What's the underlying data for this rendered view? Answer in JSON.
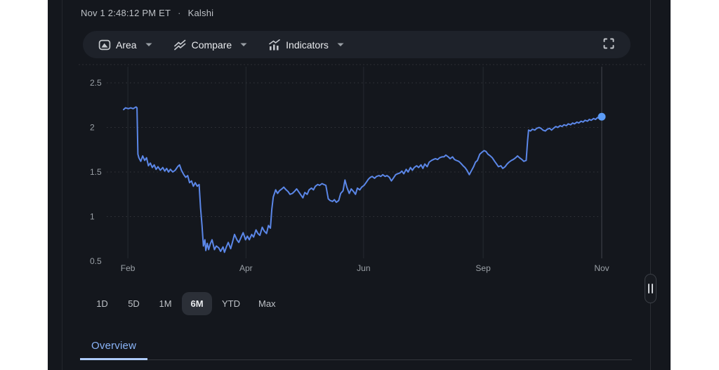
{
  "header": {
    "timestamp": "Nov 1 2:48:12 PM ET",
    "separator": "·",
    "source": "Kalshi"
  },
  "toolbar": {
    "items": [
      {
        "label": "Area",
        "icon": "area-chart-icon"
      },
      {
        "label": "Compare",
        "icon": "compare-icon"
      },
      {
        "label": "Indicators",
        "icon": "indicators-icon"
      }
    ],
    "fullscreen_icon": "fullscreen-icon"
  },
  "range": {
    "buttons": [
      {
        "label": "1D",
        "active": false
      },
      {
        "label": "5D",
        "active": false
      },
      {
        "label": "1M",
        "active": false
      },
      {
        "label": "6M",
        "active": true
      },
      {
        "label": "YTD",
        "active": false
      },
      {
        "label": "Max",
        "active": false
      }
    ]
  },
  "tabs": {
    "items": [
      {
        "label": "Overview",
        "active": true
      }
    ]
  },
  "colors": {
    "panel_bg": "#14171d",
    "surface_bg": "#1e222a",
    "selected_bg": "#2b2f37",
    "line_blue": "#5b87e8",
    "dot_blue": "#5c9bf5",
    "tab_blue": "#8ab4f8",
    "tab_underline": "#aecbfa",
    "axis_text": "#9aa0a6",
    "grid_dotted": "#33363c",
    "grid_vertical": "#262930",
    "grid_vertical_emphasis": "#42464d"
  },
  "chart_data": {
    "type": "line",
    "title": "",
    "xlabel": "",
    "ylabel": "",
    "ylim": [
      0.5,
      2.5
    ],
    "yticks": [
      2.5,
      2,
      1.5,
      1,
      0.5
    ],
    "ytick_gridline": [
      2.5,
      2,
      1.5,
      1
    ],
    "grid": "dotted horizontal, solid vertical month lines",
    "legend": "none",
    "endpoint_marker": true,
    "xticks": [
      {
        "label": "Feb",
        "t": 0.009,
        "emphasis": false
      },
      {
        "label": "Apr",
        "t": 0.256,
        "emphasis": false
      },
      {
        "label": "Jun",
        "t": 0.502,
        "emphasis": false
      },
      {
        "label": "Sep",
        "t": 0.752,
        "emphasis": false
      },
      {
        "label": "Nov",
        "t": 1.0,
        "emphasis": true
      }
    ],
    "series": [
      {
        "name": "Kalshi",
        "color": "#5b87e8",
        "points": [
          [
            0.0,
            2.2
          ],
          [
            0.004,
            2.22
          ],
          [
            0.01,
            2.21
          ],
          [
            0.015,
            2.22
          ],
          [
            0.02,
            2.21
          ],
          [
            0.026,
            2.23
          ],
          [
            0.028,
            2.22
          ],
          [
            0.03,
            1.7
          ],
          [
            0.032,
            1.66
          ],
          [
            0.036,
            1.62
          ],
          [
            0.04,
            1.68
          ],
          [
            0.044,
            1.63
          ],
          [
            0.048,
            1.66
          ],
          [
            0.052,
            1.57
          ],
          [
            0.056,
            1.6
          ],
          [
            0.06,
            1.55
          ],
          [
            0.064,
            1.58
          ],
          [
            0.068,
            1.53
          ],
          [
            0.072,
            1.56
          ],
          [
            0.077,
            1.52
          ],
          [
            0.082,
            1.55
          ],
          [
            0.086,
            1.51
          ],
          [
            0.09,
            1.54
          ],
          [
            0.094,
            1.5
          ],
          [
            0.098,
            1.53
          ],
          [
            0.103,
            1.5
          ],
          [
            0.108,
            1.52
          ],
          [
            0.113,
            1.56
          ],
          [
            0.117,
            1.58
          ],
          [
            0.121,
            1.52
          ],
          [
            0.126,
            1.47
          ],
          [
            0.13,
            1.44
          ],
          [
            0.134,
            1.46
          ],
          [
            0.138,
            1.38
          ],
          [
            0.142,
            1.4
          ],
          [
            0.146,
            1.34
          ],
          [
            0.15,
            1.38
          ],
          [
            0.154,
            1.34
          ],
          [
            0.158,
            1.36
          ],
          [
            0.161,
            1.1
          ],
          [
            0.164,
            0.9
          ],
          [
            0.167,
            0.67
          ],
          [
            0.17,
            0.74
          ],
          [
            0.172,
            0.62
          ],
          [
            0.175,
            0.7
          ],
          [
            0.178,
            0.63
          ],
          [
            0.181,
            0.69
          ],
          [
            0.185,
            0.74
          ],
          [
            0.19,
            0.63
          ],
          [
            0.194,
            0.67
          ],
          [
            0.199,
            0.65
          ],
          [
            0.203,
            0.61
          ],
          [
            0.208,
            0.66
          ],
          [
            0.211,
            0.6
          ],
          [
            0.215,
            0.66
          ],
          [
            0.219,
            0.71
          ],
          [
            0.224,
            0.64
          ],
          [
            0.228,
            0.72
          ],
          [
            0.232,
            0.8
          ],
          [
            0.237,
            0.74
          ],
          [
            0.241,
            0.71
          ],
          [
            0.246,
            0.77
          ],
          [
            0.25,
            0.82
          ],
          [
            0.255,
            0.74
          ],
          [
            0.259,
            0.78
          ],
          [
            0.263,
            0.74
          ],
          [
            0.268,
            0.8
          ],
          [
            0.272,
            0.77
          ],
          [
            0.277,
            0.85
          ],
          [
            0.281,
            0.81
          ],
          [
            0.285,
            0.79
          ],
          [
            0.29,
            0.88
          ],
          [
            0.294,
            0.84
          ],
          [
            0.299,
            0.81
          ],
          [
            0.303,
            0.9
          ],
          [
            0.307,
            0.87
          ],
          [
            0.31,
            1.08
          ],
          [
            0.313,
            1.22
          ],
          [
            0.318,
            1.3
          ],
          [
            0.322,
            1.26
          ],
          [
            0.326,
            1.29
          ],
          [
            0.331,
            1.31
          ],
          [
            0.335,
            1.33
          ],
          [
            0.34,
            1.3
          ],
          [
            0.344,
            1.28
          ],
          [
            0.348,
            1.25
          ],
          [
            0.353,
            1.26
          ],
          [
            0.357,
            1.28
          ],
          [
            0.362,
            1.31
          ],
          [
            0.366,
            1.28
          ],
          [
            0.371,
            1.24
          ],
          [
            0.375,
            1.21
          ],
          [
            0.379,
            1.27
          ],
          [
            0.384,
            1.25
          ],
          [
            0.388,
            1.3
          ],
          [
            0.393,
            1.32
          ],
          [
            0.397,
            1.3
          ],
          [
            0.401,
            1.34
          ],
          [
            0.406,
            1.36
          ],
          [
            0.41,
            1.35
          ],
          [
            0.415,
            1.37
          ],
          [
            0.419,
            1.36
          ],
          [
            0.423,
            1.35
          ],
          [
            0.428,
            1.2
          ],
          [
            0.432,
            1.18
          ],
          [
            0.437,
            1.17
          ],
          [
            0.441,
            1.19
          ],
          [
            0.445,
            1.16
          ],
          [
            0.45,
            1.18
          ],
          [
            0.454,
            1.26
          ],
          [
            0.459,
            1.29
          ],
          [
            0.463,
            1.41
          ],
          [
            0.467,
            1.33
          ],
          [
            0.472,
            1.26
          ],
          [
            0.476,
            1.31
          ],
          [
            0.481,
            1.28
          ],
          [
            0.485,
            1.25
          ],
          [
            0.489,
            1.32
          ],
          [
            0.494,
            1.3
          ],
          [
            0.498,
            1.33
          ],
          [
            0.503,
            1.35
          ],
          [
            0.507,
            1.38
          ],
          [
            0.512,
            1.42
          ],
          [
            0.516,
            1.44
          ],
          [
            0.52,
            1.45
          ],
          [
            0.525,
            1.43
          ],
          [
            0.529,
            1.45
          ],
          [
            0.534,
            1.46
          ],
          [
            0.538,
            1.45
          ],
          [
            0.542,
            1.47
          ],
          [
            0.547,
            1.45
          ],
          [
            0.551,
            1.46
          ],
          [
            0.556,
            1.44
          ],
          [
            0.56,
            1.4
          ],
          [
            0.564,
            1.43
          ],
          [
            0.569,
            1.47
          ],
          [
            0.573,
            1.48
          ],
          [
            0.578,
            1.49
          ],
          [
            0.582,
            1.51
          ],
          [
            0.586,
            1.48
          ],
          [
            0.591,
            1.53
          ],
          [
            0.595,
            1.5
          ],
          [
            0.6,
            1.55
          ],
          [
            0.604,
            1.52
          ],
          [
            0.608,
            1.55
          ],
          [
            0.613,
            1.57
          ],
          [
            0.617,
            1.55
          ],
          [
            0.622,
            1.58
          ],
          [
            0.626,
            1.54
          ],
          [
            0.63,
            1.59
          ],
          [
            0.635,
            1.56
          ],
          [
            0.639,
            1.61
          ],
          [
            0.644,
            1.63
          ],
          [
            0.648,
            1.64
          ],
          [
            0.652,
            1.65
          ],
          [
            0.657,
            1.64
          ],
          [
            0.661,
            1.66
          ],
          [
            0.666,
            1.67
          ],
          [
            0.67,
            1.67
          ],
          [
            0.674,
            1.69
          ],
          [
            0.679,
            1.67
          ],
          [
            0.683,
            1.65
          ],
          [
            0.688,
            1.67
          ],
          [
            0.692,
            1.64
          ],
          [
            0.696,
            1.63
          ],
          [
            0.701,
            1.62
          ],
          [
            0.705,
            1.6
          ],
          [
            0.71,
            1.57
          ],
          [
            0.714,
            1.55
          ],
          [
            0.718,
            1.52
          ],
          [
            0.723,
            1.47
          ],
          [
            0.727,
            1.51
          ],
          [
            0.732,
            1.56
          ],
          [
            0.736,
            1.61
          ],
          [
            0.74,
            1.63
          ],
          [
            0.745,
            1.7
          ],
          [
            0.749,
            1.72
          ],
          [
            0.754,
            1.74
          ],
          [
            0.758,
            1.73
          ],
          [
            0.762,
            1.7
          ],
          [
            0.767,
            1.68
          ],
          [
            0.771,
            1.66
          ],
          [
            0.776,
            1.62
          ],
          [
            0.78,
            1.59
          ],
          [
            0.784,
            1.56
          ],
          [
            0.789,
            1.57
          ],
          [
            0.793,
            1.54
          ],
          [
            0.798,
            1.56
          ],
          [
            0.802,
            1.59
          ],
          [
            0.806,
            1.61
          ],
          [
            0.811,
            1.63
          ],
          [
            0.815,
            1.64
          ],
          [
            0.82,
            1.66
          ],
          [
            0.824,
            1.68
          ],
          [
            0.828,
            1.66
          ],
          [
            0.833,
            1.64
          ],
          [
            0.837,
            1.62
          ],
          [
            0.842,
            1.63
          ],
          [
            0.845,
            1.85
          ],
          [
            0.847,
            1.97
          ],
          [
            0.851,
            1.96
          ],
          [
            0.855,
            1.98
          ],
          [
            0.86,
            1.97
          ],
          [
            0.864,
            1.99
          ],
          [
            0.869,
            2.0
          ],
          [
            0.873,
            1.99
          ],
          [
            0.877,
            1.97
          ],
          [
            0.882,
            1.96
          ],
          [
            0.886,
            1.98
          ],
          [
            0.891,
            1.99
          ],
          [
            0.895,
            1.97
          ],
          [
            0.899,
            1.99
          ],
          [
            0.904,
            2.01
          ],
          [
            0.908,
            2.0
          ],
          [
            0.913,
            2.02
          ],
          [
            0.917,
            2.01
          ],
          [
            0.921,
            2.03
          ],
          [
            0.926,
            2.02
          ],
          [
            0.93,
            2.04
          ],
          [
            0.935,
            2.03
          ],
          [
            0.939,
            2.05
          ],
          [
            0.943,
            2.04
          ],
          [
            0.948,
            2.06
          ],
          [
            0.952,
            2.05
          ],
          [
            0.957,
            2.07
          ],
          [
            0.961,
            2.06
          ],
          [
            0.965,
            2.08
          ],
          [
            0.97,
            2.07
          ],
          [
            0.974,
            2.09
          ],
          [
            0.978,
            2.08
          ],
          [
            0.983,
            2.1
          ],
          [
            0.987,
            2.09
          ],
          [
            0.991,
            2.11
          ],
          [
            0.996,
            2.1
          ],
          [
            1.0,
            2.12
          ]
        ]
      }
    ]
  }
}
